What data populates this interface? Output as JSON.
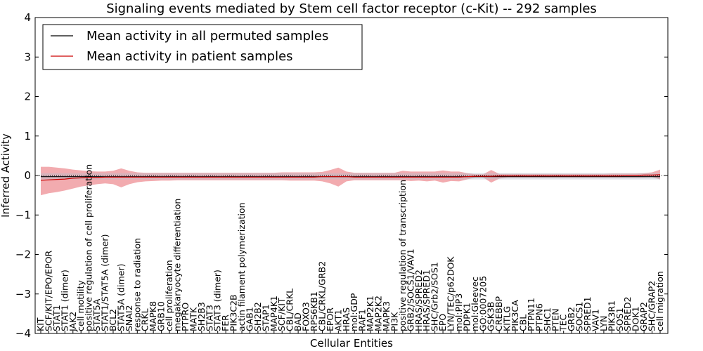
{
  "chart_data": {
    "type": "line",
    "title": "Signaling events mediated by Stem cell factor receptor (c-Kit) -- 292 samples",
    "xlabel": "Cellular Entities",
    "ylabel": "Inferred Activity",
    "ylim": [
      -4,
      4
    ],
    "yticks": [
      4,
      3,
      2,
      1,
      0,
      -1,
      -2,
      -3,
      -4
    ],
    "ytick_labels": [
      "4",
      "3",
      "2",
      "1",
      "0",
      "−1",
      "−2",
      "−3",
      "−4"
    ],
    "grid": false,
    "legend": {
      "placement": "top-left",
      "entries": [
        {
          "label": "Mean activity in all permuted samples",
          "color": "#000000"
        },
        {
          "label": "Mean activity in patient samples",
          "color": "#cc0000"
        }
      ]
    },
    "categories": [
      "KIT",
      "SCF/KIT/EPO/EPOR",
      "STAT1",
      "STAT1 (dimer)",
      "JAK2",
      "cell motility",
      "positive regulation of cell proliferation",
      "STAT5A",
      "STAT1/STAT5A (dimer)",
      "BCL2",
      "STAT5A (dimer)",
      "SNAI2",
      "response to radiation",
      "CRKL",
      "MAPK8",
      "GRB10",
      "cell proliferation",
      "megakaryocyte differentiation",
      "PTPRO",
      "MATK",
      "SH2B3",
      "STAT3",
      "STAT3 (dimer)",
      "FER",
      "PIK3C2B",
      "actin filament polymerization",
      "GAB1",
      "SH2B2",
      "STAP1",
      "MAP4K1",
      "SCF/KIT",
      "CBL/CRKL",
      "BAD",
      "FOXO3",
      "RPS6KB1",
      "CBL/CRKL/GRB2",
      "EPOR",
      "AKT1",
      "HRAS",
      "mol:GDP",
      "RAF1",
      "MAP2K1",
      "MAP2K2",
      "MAPK3",
      "PI3K",
      "positive regulation of transcription",
      "GRB2/SOCS1/VAV1",
      "HRAS/SPRED2",
      "HRAS/SPRED1",
      "SHC/Grb2/SOS1",
      "EPO",
      "LYN/TEC/p62DOK",
      "mol:PIP3",
      "PDPK1",
      "mol:Gleevec",
      "GO:0007205",
      "GSK3B",
      "CREBBP",
      "KITLG",
      "PIK3CA",
      "CBL",
      "PTPN11",
      "PTPN6",
      "SHC1",
      "PTEN",
      "TEC",
      "GRB2",
      "SOCS1",
      "SPRED1",
      "VAV1",
      "LYN",
      "PIK3R1",
      "SOS1",
      "SPRED2",
      "DOK1",
      "GRAP2",
      "SHC/GRAP2",
      "cell migration"
    ],
    "series": [
      {
        "name": "Mean activity in all permuted samples",
        "color": "#000000",
        "values": [
          -0.03,
          -0.03,
          -0.03,
          -0.03,
          -0.03,
          -0.03,
          -0.03,
          -0.03,
          -0.03,
          -0.03,
          -0.03,
          -0.03,
          -0.03,
          -0.03,
          -0.03,
          -0.03,
          -0.03,
          -0.03,
          -0.03,
          -0.03,
          -0.03,
          -0.03,
          -0.03,
          -0.03,
          -0.03,
          -0.03,
          -0.03,
          -0.03,
          -0.03,
          -0.03,
          -0.03,
          -0.03,
          -0.03,
          -0.03,
          -0.03,
          -0.03,
          -0.03,
          -0.03,
          -0.03,
          -0.03,
          -0.03,
          -0.03,
          -0.03,
          -0.03,
          -0.03,
          -0.03,
          -0.03,
          -0.03,
          -0.03,
          -0.03,
          -0.03,
          -0.03,
          -0.03,
          -0.03,
          -0.03,
          -0.03,
          -0.03,
          -0.03,
          -0.03,
          -0.03,
          -0.03,
          -0.03,
          -0.03,
          -0.03,
          -0.03,
          -0.03,
          -0.03,
          -0.03,
          -0.03,
          -0.03,
          -0.03,
          -0.03,
          -0.03,
          -0.03,
          -0.03,
          -0.03,
          -0.03,
          -0.03
        ]
      },
      {
        "name": "Mean activity in patient samples",
        "color": "#cc0000",
        "values": [
          -0.12,
          -0.11,
          -0.1,
          -0.09,
          -0.07,
          -0.06,
          -0.05,
          -0.05,
          -0.04,
          -0.04,
          -0.04,
          -0.04,
          -0.04,
          -0.04,
          -0.04,
          -0.04,
          -0.04,
          -0.04,
          -0.04,
          -0.04,
          -0.04,
          -0.04,
          -0.04,
          -0.04,
          -0.04,
          -0.04,
          -0.04,
          -0.04,
          -0.04,
          -0.04,
          -0.04,
          -0.04,
          -0.04,
          -0.04,
          -0.04,
          -0.03,
          -0.03,
          -0.03,
          -0.03,
          -0.04,
          -0.04,
          -0.04,
          -0.04,
          -0.04,
          -0.04,
          -0.04,
          -0.04,
          -0.04,
          -0.04,
          -0.04,
          -0.04,
          -0.04,
          -0.04,
          -0.03,
          -0.02,
          -0.02,
          -0.02,
          -0.01,
          -0.01,
          -0.01,
          -0.01,
          -0.01,
          -0.01,
          -0.01,
          -0.01,
          -0.01,
          -0.01,
          -0.01,
          -0.01,
          -0.01,
          -0.01,
          -0.01,
          -0.01,
          0,
          0,
          0.01,
          0.01,
          0.02
        ]
      }
    ],
    "bands": [
      {
        "name": "patient spread",
        "color": "#e8666d",
        "opacity": 0.55,
        "lower": [
          -0.5,
          -0.45,
          -0.42,
          -0.38,
          -0.33,
          -0.28,
          -0.25,
          -0.22,
          -0.2,
          -0.22,
          -0.3,
          -0.22,
          -0.17,
          -0.15,
          -0.14,
          -0.13,
          -0.13,
          -0.12,
          -0.12,
          -0.12,
          -0.12,
          -0.12,
          -0.12,
          -0.12,
          -0.12,
          -0.12,
          -0.12,
          -0.12,
          -0.12,
          -0.12,
          -0.12,
          -0.13,
          -0.13,
          -0.13,
          -0.13,
          -0.15,
          -0.2,
          -0.28,
          -0.15,
          -0.12,
          -0.12,
          -0.12,
          -0.12,
          -0.12,
          -0.12,
          -0.12,
          -0.14,
          -0.13,
          -0.15,
          -0.13,
          -0.18,
          -0.14,
          -0.15,
          -0.1,
          -0.05,
          -0.05,
          -0.18,
          -0.08,
          -0.05,
          -0.05,
          -0.05,
          -0.05,
          -0.05,
          -0.05,
          -0.05,
          -0.05,
          -0.05,
          -0.05,
          -0.05,
          -0.05,
          -0.05,
          -0.05,
          -0.05,
          -0.05,
          -0.05,
          -0.05,
          -0.04,
          -0.1
        ],
        "upper": [
          0.22,
          0.22,
          0.2,
          0.18,
          0.15,
          0.13,
          0.11,
          0.1,
          0.1,
          0.12,
          0.18,
          0.12,
          0.08,
          0.07,
          0.07,
          0.07,
          0.07,
          0.07,
          0.07,
          0.07,
          0.07,
          0.07,
          0.07,
          0.07,
          0.07,
          0.07,
          0.07,
          0.07,
          0.07,
          0.07,
          0.08,
          0.08,
          0.08,
          0.08,
          0.08,
          0.09,
          0.14,
          0.2,
          0.1,
          0.07,
          0.07,
          0.07,
          0.07,
          0.07,
          0.07,
          0.12,
          0.1,
          0.1,
          0.1,
          0.1,
          0.13,
          0.1,
          0.1,
          0.06,
          0.03,
          0.03,
          0.14,
          0.04,
          0.04,
          0.04,
          0.04,
          0.04,
          0.04,
          0.04,
          0.04,
          0.04,
          0.04,
          0.04,
          0.04,
          0.04,
          0.04,
          0.05,
          0.05,
          0.05,
          0.05,
          0.06,
          0.08,
          0.15
        ]
      },
      {
        "name": "permuted spread",
        "color": "#b9bfcc",
        "opacity": 0.45,
        "lower": [
          -0.1,
          -0.1,
          -0.1,
          -0.1,
          -0.1,
          -0.1,
          -0.1,
          -0.1,
          -0.1,
          -0.1,
          -0.1,
          -0.1,
          -0.1,
          -0.1,
          -0.1,
          -0.1,
          -0.1,
          -0.1,
          -0.1,
          -0.1,
          -0.1,
          -0.1,
          -0.1,
          -0.1,
          -0.1,
          -0.1,
          -0.1,
          -0.1,
          -0.1,
          -0.1,
          -0.1,
          -0.1,
          -0.1,
          -0.1,
          -0.1,
          -0.1,
          -0.1,
          -0.1,
          -0.1,
          -0.1,
          -0.1,
          -0.1,
          -0.1,
          -0.1,
          -0.1,
          -0.1,
          -0.1,
          -0.1,
          -0.1,
          -0.1,
          -0.1,
          -0.1,
          -0.1,
          -0.1,
          -0.1,
          -0.1,
          -0.1,
          -0.1,
          -0.1,
          -0.1,
          -0.1,
          -0.1,
          -0.1,
          -0.1,
          -0.1,
          -0.1,
          -0.1,
          -0.1,
          -0.1,
          -0.1,
          -0.1,
          -0.1,
          -0.1,
          -0.1,
          -0.1,
          -0.1,
          -0.1,
          -0.1
        ],
        "upper": [
          0.06,
          0.06,
          0.06,
          0.06,
          0.06,
          0.06,
          0.06,
          0.06,
          0.06,
          0.06,
          0.06,
          0.06,
          0.06,
          0.06,
          0.06,
          0.06,
          0.06,
          0.06,
          0.06,
          0.06,
          0.06,
          0.06,
          0.06,
          0.06,
          0.06,
          0.06,
          0.06,
          0.06,
          0.06,
          0.06,
          0.06,
          0.06,
          0.06,
          0.06,
          0.06,
          0.06,
          0.06,
          0.06,
          0.06,
          0.06,
          0.06,
          0.06,
          0.06,
          0.06,
          0.06,
          0.06,
          0.06,
          0.06,
          0.06,
          0.06,
          0.06,
          0.06,
          0.06,
          0.06,
          0.06,
          0.06,
          0.06,
          0.06,
          0.06,
          0.06,
          0.06,
          0.06,
          0.06,
          0.06,
          0.06,
          0.06,
          0.06,
          0.06,
          0.06,
          0.06,
          0.06,
          0.06,
          0.06,
          0.06,
          0.06,
          0.06,
          0.06,
          0.06
        ]
      }
    ]
  }
}
